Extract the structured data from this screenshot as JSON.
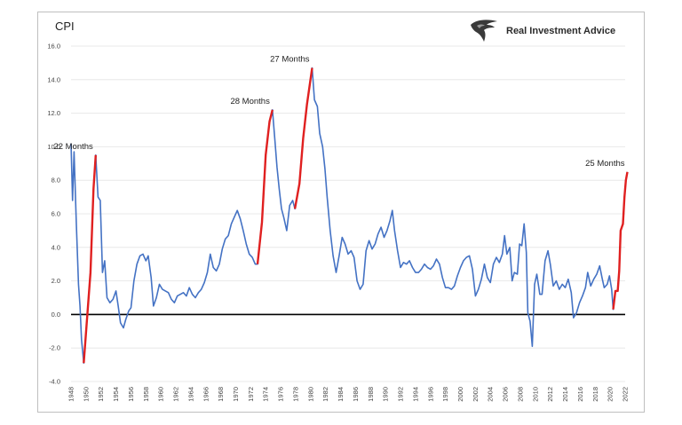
{
  "chart_data": {
    "type": "line",
    "title": "CPI",
    "xlabel": "",
    "ylabel": "",
    "xlim": [
      1948,
      2022
    ],
    "ylim": [
      -4.0,
      16.0
    ],
    "yticks": [
      "-4.0",
      "-2.0",
      "0.0",
      "2.0",
      "4.0",
      "6.0",
      "8.0",
      "10.0",
      "12.0",
      "14.0",
      "16.0"
    ],
    "xticks": [
      "1948",
      "1950",
      "1952",
      "1954",
      "1956",
      "1958",
      "1960",
      "1962",
      "1964",
      "1966",
      "1968",
      "1970",
      "1972",
      "1974",
      "1976",
      "1978",
      "1980",
      "1982",
      "1984",
      "1986",
      "1988",
      "1990",
      "1992",
      "1994",
      "1996",
      "1998",
      "2000",
      "2002",
      "2004",
      "2006",
      "2008",
      "2010",
      "2012",
      "2014",
      "2016",
      "2018",
      "2020",
      "2022"
    ],
    "grid": true,
    "zero_line": true,
    "colors": {
      "series": "#4472c4",
      "highlight": "#e02020",
      "zero_line": "#000000"
    },
    "series": [
      {
        "points": [
          [
            1948.0,
            10.2
          ],
          [
            1948.2,
            6.8
          ],
          [
            1948.4,
            9.7
          ],
          [
            1948.7,
            5.5
          ],
          [
            1949.0,
            1.8
          ],
          [
            1949.2,
            0.5
          ],
          [
            1949.4,
            -1.5
          ],
          [
            1949.7,
            -2.9
          ],
          [
            1950.6,
            2.5
          ],
          [
            1951.0,
            7.5
          ],
          [
            1951.3,
            9.5
          ],
          [
            1951.6,
            7.0
          ],
          [
            1951.9,
            6.8
          ],
          [
            1952.2,
            2.5
          ],
          [
            1952.5,
            3.2
          ],
          [
            1952.8,
            1.0
          ],
          [
            1953.2,
            0.7
          ],
          [
            1953.6,
            0.9
          ],
          [
            1954.0,
            1.4
          ],
          [
            1954.3,
            0.5
          ],
          [
            1954.6,
            -0.5
          ],
          [
            1955.0,
            -0.8
          ],
          [
            1955.3,
            -0.3
          ],
          [
            1955.7,
            0.2
          ],
          [
            1956.0,
            0.4
          ],
          [
            1956.4,
            2.0
          ],
          [
            1956.8,
            3.0
          ],
          [
            1957.2,
            3.5
          ],
          [
            1957.6,
            3.6
          ],
          [
            1958.0,
            3.2
          ],
          [
            1958.3,
            3.5
          ],
          [
            1958.7,
            2.2
          ],
          [
            1959.0,
            0.5
          ],
          [
            1959.4,
            1.0
          ],
          [
            1959.8,
            1.8
          ],
          [
            1960.2,
            1.5
          ],
          [
            1960.6,
            1.4
          ],
          [
            1961.0,
            1.3
          ],
          [
            1961.4,
            0.9
          ],
          [
            1961.8,
            0.7
          ],
          [
            1962.2,
            1.1
          ],
          [
            1962.6,
            1.2
          ],
          [
            1963.0,
            1.3
          ],
          [
            1963.4,
            1.1
          ],
          [
            1963.8,
            1.6
          ],
          [
            1964.2,
            1.2
          ],
          [
            1964.6,
            1.0
          ],
          [
            1965.0,
            1.3
          ],
          [
            1965.4,
            1.5
          ],
          [
            1965.8,
            1.9
          ],
          [
            1966.2,
            2.5
          ],
          [
            1966.6,
            3.6
          ],
          [
            1967.0,
            2.8
          ],
          [
            1967.4,
            2.6
          ],
          [
            1967.8,
            3.0
          ],
          [
            1968.2,
            3.9
          ],
          [
            1968.6,
            4.5
          ],
          [
            1969.0,
            4.7
          ],
          [
            1969.4,
            5.4
          ],
          [
            1969.8,
            5.8
          ],
          [
            1970.2,
            6.2
          ],
          [
            1970.6,
            5.7
          ],
          [
            1971.0,
            5.0
          ],
          [
            1971.4,
            4.2
          ],
          [
            1971.8,
            3.6
          ],
          [
            1972.2,
            3.4
          ],
          [
            1972.6,
            3.0
          ],
          [
            1972.9,
            3.0
          ],
          [
            1973.5,
            5.5
          ],
          [
            1974.0,
            9.5
          ],
          [
            1974.5,
            11.5
          ],
          [
            1974.9,
            12.2
          ],
          [
            1975.2,
            10.5
          ],
          [
            1975.5,
            8.8
          ],
          [
            1975.8,
            7.5
          ],
          [
            1976.1,
            6.3
          ],
          [
            1976.4,
            5.8
          ],
          [
            1976.8,
            5.0
          ],
          [
            1977.2,
            6.5
          ],
          [
            1977.6,
            6.8
          ],
          [
            1977.9,
            6.3
          ],
          [
            1978.5,
            7.8
          ],
          [
            1979.0,
            10.5
          ],
          [
            1979.5,
            12.5
          ],
          [
            1980.2,
            14.7
          ],
          [
            1980.5,
            12.8
          ],
          [
            1980.9,
            12.4
          ],
          [
            1981.2,
            10.8
          ],
          [
            1981.6,
            10.0
          ],
          [
            1981.9,
            8.7
          ],
          [
            1982.2,
            7.0
          ],
          [
            1982.6,
            5.0
          ],
          [
            1983.0,
            3.5
          ],
          [
            1983.4,
            2.5
          ],
          [
            1983.8,
            3.5
          ],
          [
            1984.2,
            4.6
          ],
          [
            1984.6,
            4.2
          ],
          [
            1985.0,
            3.6
          ],
          [
            1985.4,
            3.8
          ],
          [
            1985.8,
            3.4
          ],
          [
            1986.2,
            2.0
          ],
          [
            1986.6,
            1.5
          ],
          [
            1987.0,
            1.8
          ],
          [
            1987.4,
            3.8
          ],
          [
            1987.8,
            4.4
          ],
          [
            1988.2,
            3.9
          ],
          [
            1988.6,
            4.2
          ],
          [
            1989.0,
            4.8
          ],
          [
            1989.4,
            5.2
          ],
          [
            1989.8,
            4.6
          ],
          [
            1990.2,
            5.0
          ],
          [
            1990.6,
            5.6
          ],
          [
            1990.9,
            6.2
          ],
          [
            1991.2,
            5.0
          ],
          [
            1991.6,
            3.8
          ],
          [
            1992.0,
            2.8
          ],
          [
            1992.4,
            3.1
          ],
          [
            1992.8,
            3.0
          ],
          [
            1993.2,
            3.2
          ],
          [
            1993.6,
            2.8
          ],
          [
            1994.0,
            2.5
          ],
          [
            1994.4,
            2.5
          ],
          [
            1994.8,
            2.7
          ],
          [
            1995.2,
            3.0
          ],
          [
            1995.6,
            2.8
          ],
          [
            1996.0,
            2.7
          ],
          [
            1996.4,
            2.9
          ],
          [
            1996.8,
            3.3
          ],
          [
            1997.2,
            3.0
          ],
          [
            1997.6,
            2.2
          ],
          [
            1998.0,
            1.6
          ],
          [
            1998.4,
            1.6
          ],
          [
            1998.8,
            1.5
          ],
          [
            1999.2,
            1.7
          ],
          [
            1999.6,
            2.3
          ],
          [
            2000.0,
            2.8
          ],
          [
            2000.4,
            3.2
          ],
          [
            2000.8,
            3.4
          ],
          [
            2001.2,
            3.5
          ],
          [
            2001.6,
            2.7
          ],
          [
            2002.0,
            1.1
          ],
          [
            2002.4,
            1.5
          ],
          [
            2002.8,
            2.1
          ],
          [
            2003.2,
            3.0
          ],
          [
            2003.6,
            2.2
          ],
          [
            2004.0,
            1.9
          ],
          [
            2004.4,
            3.0
          ],
          [
            2004.8,
            3.4
          ],
          [
            2005.2,
            3.1
          ],
          [
            2005.6,
            3.6
          ],
          [
            2005.9,
            4.7
          ],
          [
            2006.2,
            3.6
          ],
          [
            2006.6,
            4.0
          ],
          [
            2006.9,
            2.0
          ],
          [
            2007.2,
            2.5
          ],
          [
            2007.6,
            2.4
          ],
          [
            2007.9,
            4.2
          ],
          [
            2008.2,
            4.1
          ],
          [
            2008.5,
            5.4
          ],
          [
            2008.8,
            3.7
          ],
          [
            2009.0,
            0.1
          ],
          [
            2009.3,
            -0.4
          ],
          [
            2009.6,
            -1.9
          ],
          [
            2009.9,
            1.8
          ],
          [
            2010.2,
            2.4
          ],
          [
            2010.6,
            1.2
          ],
          [
            2010.9,
            1.2
          ],
          [
            2011.3,
            3.2
          ],
          [
            2011.7,
            3.8
          ],
          [
            2012.0,
            3.0
          ],
          [
            2012.4,
            1.7
          ],
          [
            2012.8,
            2.0
          ],
          [
            2013.2,
            1.5
          ],
          [
            2013.6,
            1.8
          ],
          [
            2014.0,
            1.6
          ],
          [
            2014.4,
            2.1
          ],
          [
            2014.8,
            1.3
          ],
          [
            2015.1,
            -0.2
          ],
          [
            2015.5,
            0.1
          ],
          [
            2015.9,
            0.7
          ],
          [
            2016.3,
            1.1
          ],
          [
            2016.7,
            1.6
          ],
          [
            2017.0,
            2.5
          ],
          [
            2017.4,
            1.7
          ],
          [
            2017.8,
            2.1
          ],
          [
            2018.2,
            2.4
          ],
          [
            2018.6,
            2.9
          ],
          [
            2018.9,
            2.2
          ],
          [
            2019.2,
            1.6
          ],
          [
            2019.6,
            1.8
          ],
          [
            2019.9,
            2.3
          ],
          [
            2020.2,
            1.5
          ],
          [
            2020.4,
            0.3
          ],
          [
            2020.7,
            1.4
          ],
          [
            2021.0,
            1.4
          ],
          [
            2021.2,
            2.6
          ],
          [
            2021.4,
            5.0
          ],
          [
            2021.7,
            5.4
          ],
          [
            2021.9,
            7.0
          ],
          [
            2022.1,
            8.0
          ],
          [
            2022.3,
            8.5
          ]
        ]
      }
    ],
    "highlights": [
      {
        "label": "22 Months",
        "x_range": [
          1949.7,
          1951.3
        ]
      },
      {
        "label": "28 Months",
        "x_range": [
          1972.9,
          1974.9
        ]
      },
      {
        "label": "27 Months",
        "x_range": [
          1977.9,
          1980.2
        ]
      },
      {
        "label": "25 Months",
        "x_range": [
          2020.4,
          2022.3
        ]
      }
    ]
  },
  "header": {
    "title": "CPI",
    "brand_name": "Real Investment Advice",
    "brand_icon": "eagle-logo-icon"
  }
}
